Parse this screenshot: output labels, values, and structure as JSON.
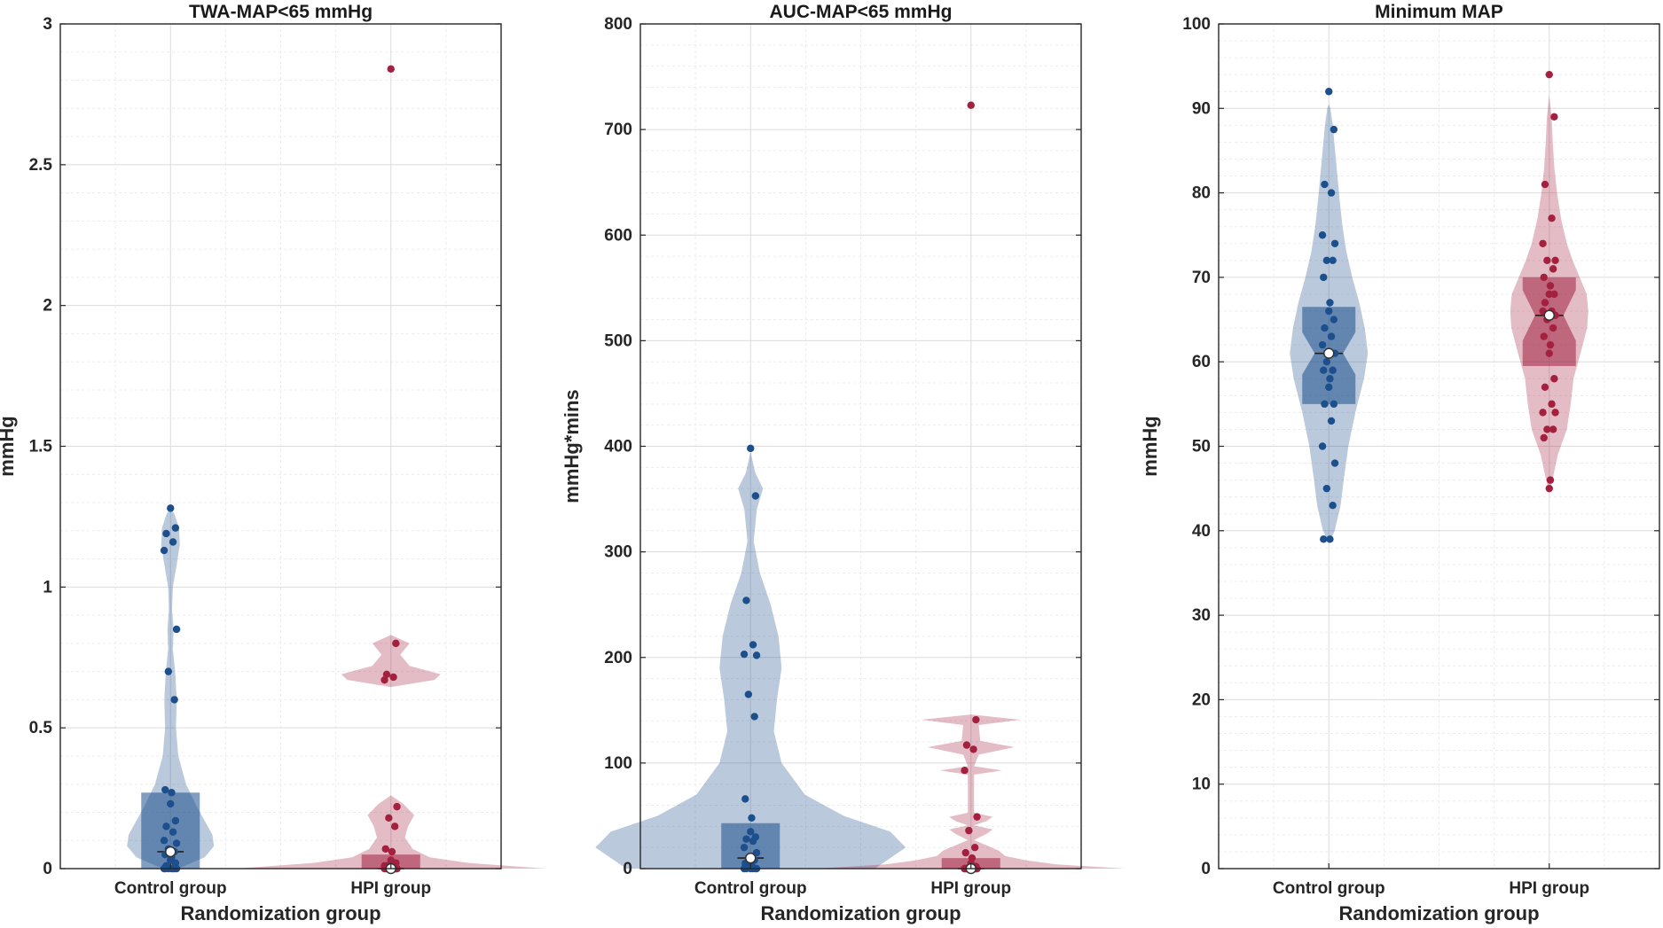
{
  "colors": {
    "control": "#1c4f8c",
    "hpi": "#a3203f"
  },
  "chart_data": [
    {
      "type": "violin",
      "title": "TWA-MAP<65 mmHg",
      "ylabel": "mmHg",
      "xlabel": "Randomization group",
      "categories": [
        "Control group",
        "HPI group"
      ],
      "ylim": [
        0,
        3
      ],
      "yticks": [
        0,
        0.5,
        1,
        1.5,
        2,
        2.5,
        3
      ],
      "yticklabels": [
        "0",
        "0.5",
        "1",
        "1.5",
        "2",
        "2.5",
        "3"
      ],
      "grid": true,
      "series": [
        {
          "group": "Control group",
          "median": 0.06,
          "q1": 0,
          "q3": 0.27,
          "points": [
            1.28,
            1.21,
            1.19,
            1.16,
            1.13,
            0.85,
            0.7,
            0.6,
            0.28,
            0.27,
            0.23,
            0.17,
            0.15,
            0.13,
            0.1,
            0.09,
            0.07,
            0.06,
            0.05,
            0.04,
            0.03,
            0.02,
            0.01,
            0,
            0,
            0,
            0,
            0,
            0,
            0
          ],
          "violin": [
            [
              0,
              0.05
            ],
            [
              0.04,
              0.22
            ],
            [
              0.08,
              0.28
            ],
            [
              0.12,
              0.27
            ],
            [
              0.16,
              0.23
            ],
            [
              0.22,
              0.17
            ],
            [
              0.3,
              0.1
            ],
            [
              0.4,
              0.05
            ],
            [
              0.5,
              0.035
            ],
            [
              0.6,
              0.04
            ],
            [
              0.7,
              0.03
            ],
            [
              0.78,
              0.015
            ],
            [
              0.85,
              0.02
            ],
            [
              0.92,
              0.01
            ],
            [
              1.0,
              0.015
            ],
            [
              1.08,
              0.04
            ],
            [
              1.15,
              0.06
            ],
            [
              1.21,
              0.055
            ],
            [
              1.26,
              0.025
            ],
            [
              1.28,
              0.0
            ]
          ]
        },
        {
          "group": "HPI group",
          "median": 0,
          "q1": 0,
          "q3": 0.05,
          "points": [
            2.84,
            0.8,
            0.69,
            0.68,
            0.67,
            0.22,
            0.18,
            0.15,
            0.07,
            0.06,
            0.03,
            0.02,
            0.01,
            0.01,
            0.01,
            0,
            0,
            0,
            0,
            0,
            0,
            0,
            0,
            0,
            0,
            0,
            0,
            0
          ],
          "violin": [
            [
              0,
              1.0
            ],
            [
              0.02,
              0.5
            ],
            [
              0.04,
              0.25
            ],
            [
              0.07,
              0.14
            ],
            [
              0.11,
              0.09
            ],
            [
              0.15,
              0.11
            ],
            [
              0.19,
              0.15
            ],
            [
              0.23,
              0.08
            ],
            [
              0.26,
              0.0
            ],
            [
              0.645,
              0.0
            ],
            [
              0.67,
              0.28
            ],
            [
              0.69,
              0.32
            ],
            [
              0.72,
              0.12
            ],
            [
              0.76,
              0.06
            ],
            [
              0.8,
              0.12
            ],
            [
              0.83,
              0.0
            ]
          ]
        }
      ]
    },
    {
      "type": "violin",
      "title": "AUC-MAP<65 mmHg",
      "ylabel": "mmHg*mins",
      "xlabel": "Randomization group",
      "categories": [
        "Control group",
        "HPI group"
      ],
      "ylim": [
        0,
        800
      ],
      "yticks": [
        0,
        100,
        200,
        300,
        400,
        500,
        600,
        700,
        800
      ],
      "yticklabels": [
        "0",
        "100",
        "200",
        "300",
        "400",
        "500",
        "600",
        "700",
        "800"
      ],
      "grid": true,
      "series": [
        {
          "group": "Control group",
          "median": 10,
          "q1": 0,
          "q3": 43,
          "points": [
            398,
            353,
            254,
            212,
            203,
            202,
            165,
            144,
            66,
            48,
            35,
            30,
            28,
            26,
            20,
            15,
            10,
            8,
            5,
            3,
            0,
            0,
            0,
            0,
            0,
            0
          ],
          "violin": [
            [
              0,
              0.8
            ],
            [
              10,
              0.9
            ],
            [
              20,
              1.0
            ],
            [
              35,
              0.9
            ],
            [
              50,
              0.6
            ],
            [
              70,
              0.35
            ],
            [
              100,
              0.2
            ],
            [
              130,
              0.15
            ],
            [
              160,
              0.17
            ],
            [
              190,
              0.2
            ],
            [
              220,
              0.18
            ],
            [
              250,
              0.13
            ],
            [
              280,
              0.06
            ],
            [
              310,
              0.02
            ],
            [
              340,
              0.04
            ],
            [
              360,
              0.08
            ],
            [
              375,
              0.03
            ],
            [
              395,
              0.0
            ]
          ]
        },
        {
          "group": "HPI group",
          "median": 0,
          "q1": 0,
          "q3": 10,
          "points": [
            723,
            141,
            117,
            113,
            93,
            49,
            36,
            20,
            15,
            10,
            5,
            2,
            0,
            0,
            0,
            0,
            0,
            0,
            0,
            0,
            0,
            0,
            0,
            0,
            0,
            0
          ],
          "violin": [
            [
              0,
              1.0
            ],
            [
              4,
              0.55
            ],
            [
              8,
              0.35
            ],
            [
              12,
              0.22
            ],
            [
              17,
              0.18
            ],
            [
              22,
              0.1
            ],
            [
              27,
              0.02
            ],
            [
              33,
              0.1
            ],
            [
              37,
              0.14
            ],
            [
              41,
              0.02
            ],
            [
              45,
              0.1
            ],
            [
              49,
              0.14
            ],
            [
              53,
              0.02
            ],
            [
              89,
              0.02
            ],
            [
              93,
              0.2
            ],
            [
              97,
              0.02
            ],
            [
              108,
              0.05
            ],
            [
              115,
              0.28
            ],
            [
              121,
              0.06
            ],
            [
              136,
              0.05
            ],
            [
              141,
              0.32
            ],
            [
              146,
              0.0
            ]
          ]
        }
      ]
    },
    {
      "type": "violin",
      "title": "Minimum MAP",
      "ylabel": "mmHg",
      "xlabel": "Randomization group",
      "categories": [
        "Control group",
        "HPI group"
      ],
      "ylim": [
        0,
        100
      ],
      "yticks": [
        0,
        10,
        20,
        30,
        40,
        50,
        60,
        70,
        80,
        90,
        100
      ],
      "yticklabels": [
        "0",
        "10",
        "20",
        "30",
        "40",
        "50",
        "60",
        "70",
        "80",
        "90",
        "100"
      ],
      "grid": true,
      "series": [
        {
          "group": "Control group",
          "median": 61,
          "q1": 55,
          "q3": 66.5,
          "notch": [
            58.5,
            63.5
          ],
          "points": [
            92,
            87.5,
            81,
            80,
            75,
            74,
            72,
            72,
            70,
            67,
            66,
            65,
            64,
            63,
            62,
            61,
            60,
            59,
            59,
            58,
            57,
            55,
            55,
            53,
            50,
            48,
            45,
            43,
            39,
            39
          ],
          "violin": [
            [
              38.5,
              0.0
            ],
            [
              40,
              0.15
            ],
            [
              43,
              0.3
            ],
            [
              46,
              0.38
            ],
            [
              50,
              0.5
            ],
            [
              54,
              0.68
            ],
            [
              58,
              0.9
            ],
            [
              61,
              1.0
            ],
            [
              64,
              0.92
            ],
            [
              67,
              0.78
            ],
            [
              70,
              0.6
            ],
            [
              73,
              0.45
            ],
            [
              76,
              0.35
            ],
            [
              79,
              0.28
            ],
            [
              82,
              0.22
            ],
            [
              85,
              0.16
            ],
            [
              88,
              0.1
            ],
            [
              90,
              0.04
            ],
            [
              90.5,
              0.0
            ]
          ]
        },
        {
          "group": "HPI group",
          "median": 65.5,
          "q1": 59.5,
          "q3": 70,
          "notch": [
            62.5,
            68.5
          ],
          "points": [
            94,
            89,
            81,
            77,
            74,
            72,
            72,
            71,
            70,
            69,
            68,
            68,
            67,
            66,
            66,
            65.5,
            65,
            64,
            63,
            62,
            61,
            58,
            57,
            55,
            54,
            54,
            52,
            52,
            51,
            46,
            45
          ],
          "violin": [
            [
              44.5,
              0.0
            ],
            [
              46,
              0.08
            ],
            [
              49,
              0.22
            ],
            [
              52,
              0.45
            ],
            [
              55,
              0.55
            ],
            [
              58,
              0.62
            ],
            [
              61,
              0.8
            ],
            [
              64,
              0.97
            ],
            [
              66,
              1.0
            ],
            [
              68,
              0.96
            ],
            [
              70,
              0.78
            ],
            [
              72,
              0.6
            ],
            [
              74,
              0.45
            ],
            [
              77,
              0.3
            ],
            [
              80,
              0.2
            ],
            [
              83,
              0.13
            ],
            [
              86,
              0.09
            ],
            [
              89,
              0.06
            ],
            [
              91.5,
              0.0
            ]
          ]
        }
      ]
    }
  ]
}
